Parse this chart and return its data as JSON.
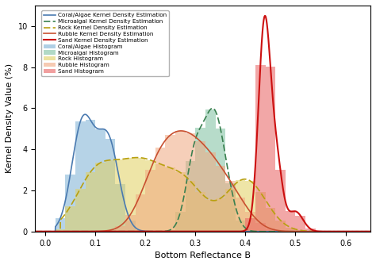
{
  "title": "",
  "xlabel": "Bottom Reflectance B",
  "ylabel": "Kernel Density Value (%)",
  "xlim": [
    -0.02,
    0.65
  ],
  "ylim": [
    0,
    11
  ],
  "yticks": [
    0,
    2,
    4,
    6,
    8,
    10
  ],
  "xticks": [
    0.0,
    0.1,
    0.2,
    0.3,
    0.4,
    0.5,
    0.6
  ],
  "coral_algae_fill": "#7bafd4",
  "microalgal_fill": "#7dc0a0",
  "rock_fill": "#e0d060",
  "rubble_fill": "#f0a880",
  "sand_fill": "#e86060",
  "coral_kde_color": "#4a7ab0",
  "microalgal_kde_color": "#3a8050",
  "rock_kde_color": "#b8a010",
  "rubble_kde_color": "#c85030",
  "sand_kde_color": "#cc1010",
  "background_color": "#ffffff",
  "figsize": [
    4.74,
    3.34
  ],
  "dpi": 100
}
